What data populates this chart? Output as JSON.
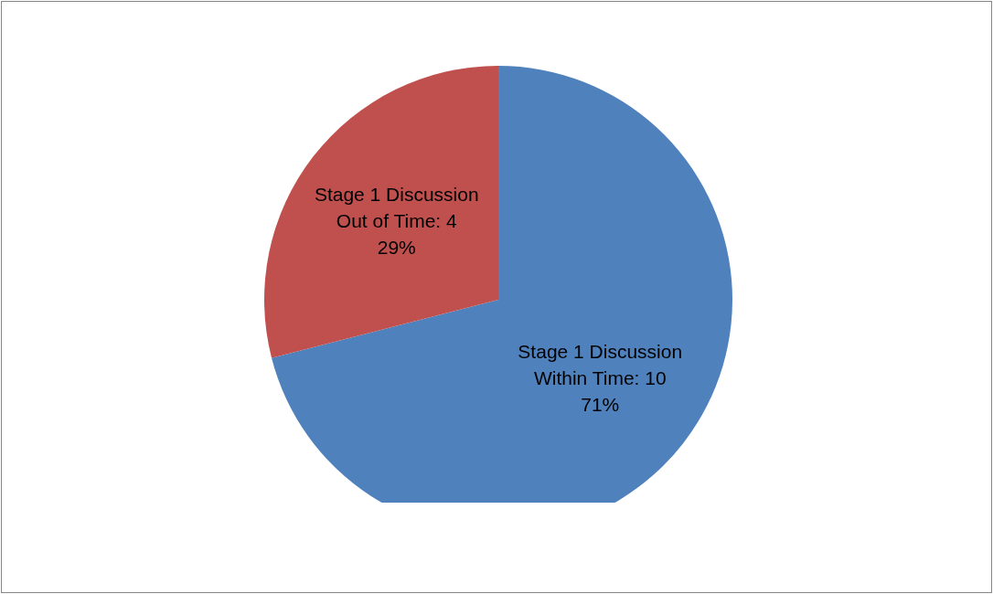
{
  "chart_data": {
    "type": "pie",
    "categories": [
      "Stage 1 Discussion Within Time: 10",
      "Stage 1 Discussion Out of Time: 4"
    ],
    "values": [
      71,
      29
    ],
    "colors": [
      "#4f81bd",
      "#c0504d"
    ],
    "value_labels": [
      "71%",
      "29%"
    ]
  }
}
